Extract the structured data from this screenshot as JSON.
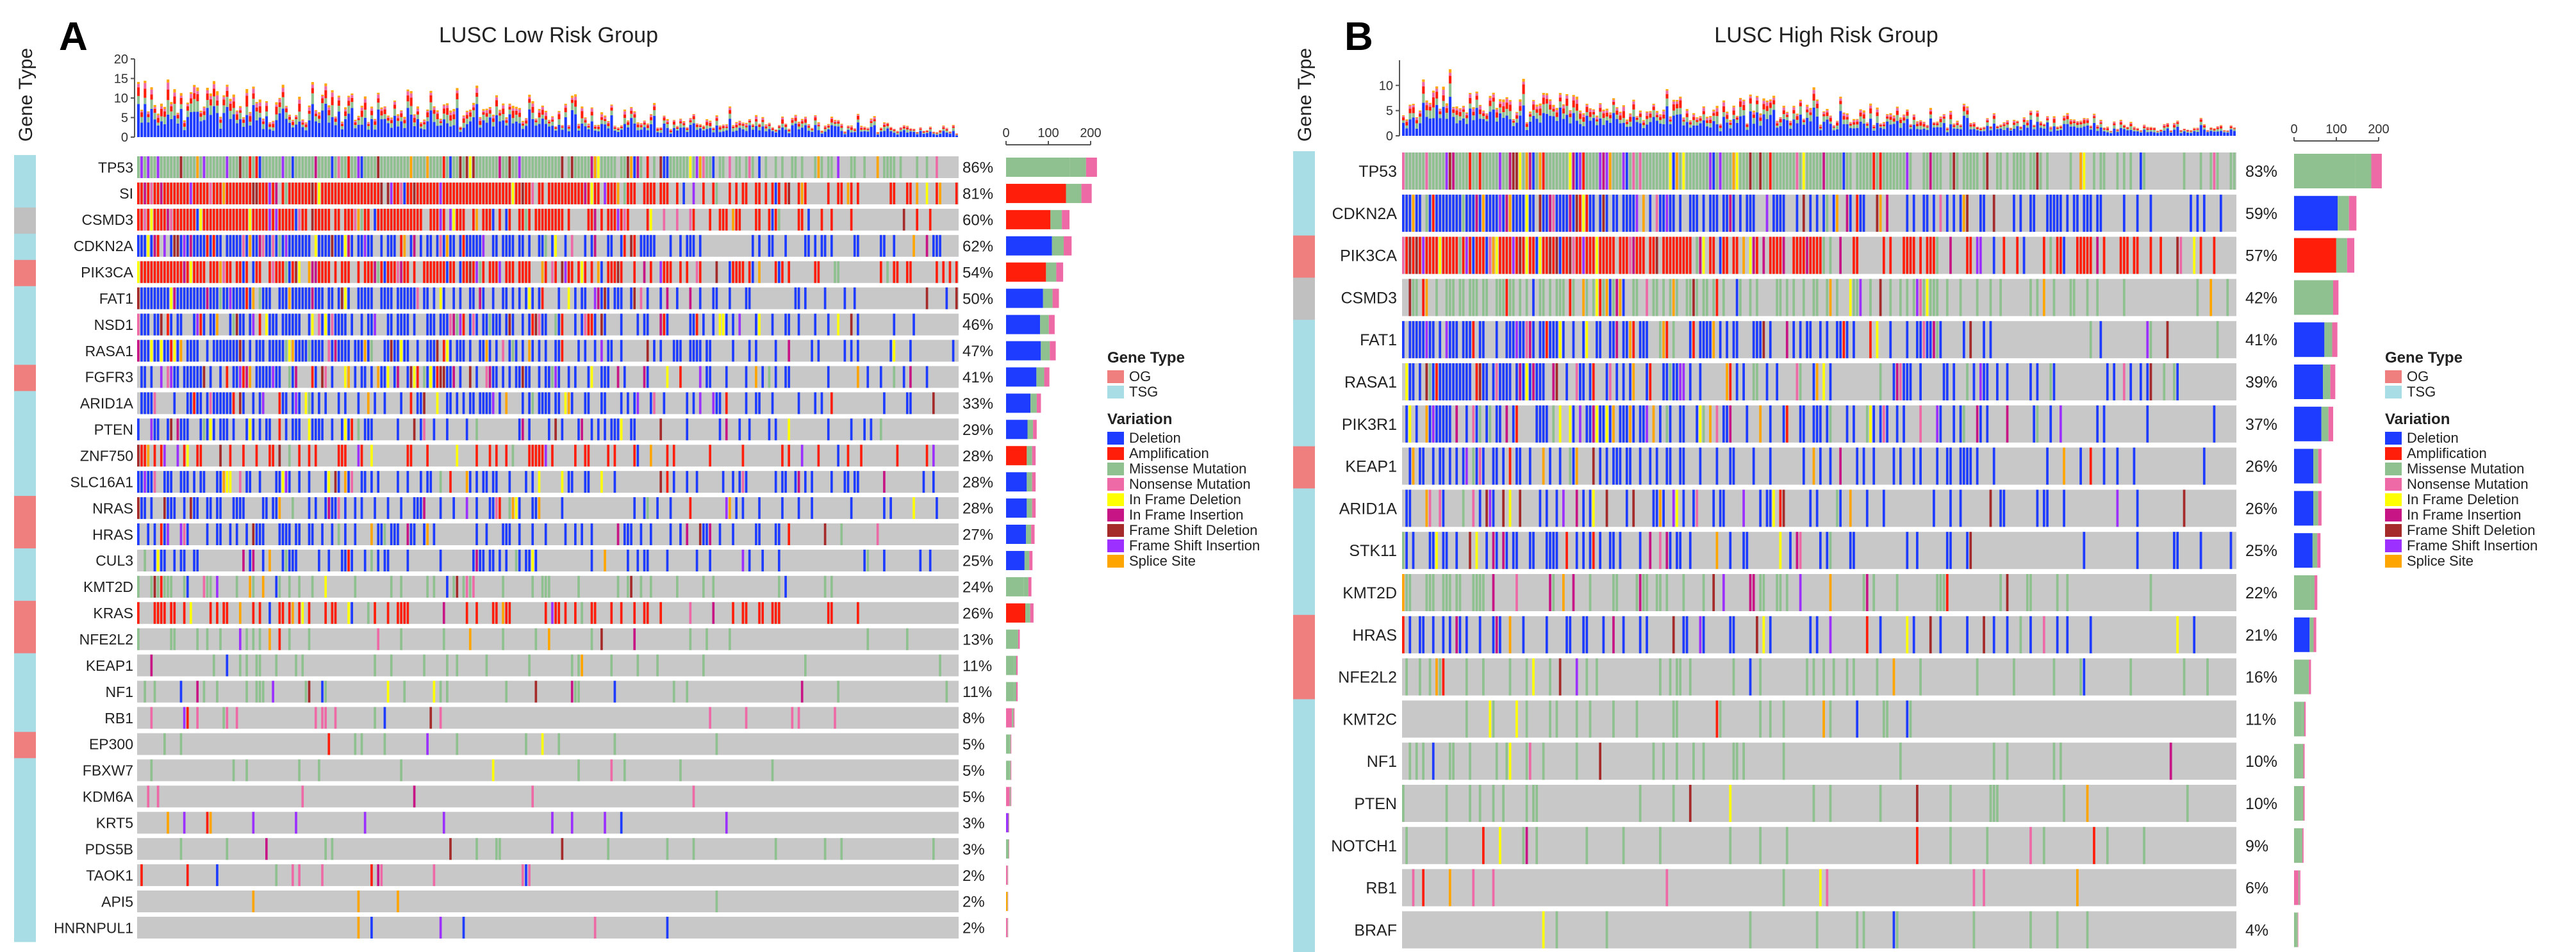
{
  "colors": {
    "OG": "#ef7f7f",
    "TSG": "#a9dde5",
    "Deletion": "#1e3cff",
    "Amplification": "#ff1e0a",
    "Missense Mutation": "#8fc08f",
    "Nonsense Mutation": "#ee6aa7",
    "In Frame Deletion": "#ffff00",
    "In Frame Insertion": "#c71585",
    "Frame Shift Deletion": "#a52a2a",
    "Frame Shift Insertion": "#9b30ff",
    "Splice Site": "#ffa500",
    "Other": "#c0c0c0",
    "background_track": "#c8c8c8"
  },
  "chart_data": [
    {
      "type": "oncoplot",
      "panel_label": "A",
      "title": "LUSC Low Risk Group",
      "gene_type_axis_label": "Gene Type",
      "top_bar": {
        "ylim": [
          0,
          20
        ],
        "ticks": [
          "0",
          "5",
          "10",
          "15",
          "20"
        ],
        "n_samples": 250
      },
      "side_bar": {
        "ticks": [
          "0",
          "100",
          "200"
        ]
      },
      "legend": {
        "gene_type_title": "Gene Type",
        "gene_types": [
          "OG",
          "TSG"
        ],
        "variation_title": "Variation",
        "variations": [
          "Deletion",
          "Amplification",
          "Missense Mutation",
          "Nonsense Mutation",
          "In Frame Deletion",
          "In Frame Insertion",
          "Frame Shift Deletion",
          "Frame Shift Insertion",
          "Splice Site"
        ]
      },
      "genes": [
        {
          "name": "TP53",
          "pct": "86%",
          "pct_value": 86,
          "type": "TSG",
          "dominant": "Missense Mutation"
        },
        {
          "name": "SI",
          "pct": "81%",
          "pct_value": 81,
          "type": "TSG",
          "dominant": "Amplification"
        },
        {
          "name": "CSMD3",
          "pct": "60%",
          "pct_value": 60,
          "type": "Other",
          "dominant": "Amplification"
        },
        {
          "name": "CDKN2A",
          "pct": "62%",
          "pct_value": 62,
          "type": "TSG",
          "dominant": "Deletion"
        },
        {
          "name": "PIK3CA",
          "pct": "54%",
          "pct_value": 54,
          "type": "OG",
          "dominant": "Amplification"
        },
        {
          "name": "FAT1",
          "pct": "50%",
          "pct_value": 50,
          "type": "TSG",
          "dominant": "Deletion"
        },
        {
          "name": "NSD1",
          "pct": "46%",
          "pct_value": 46,
          "type": "TSG",
          "dominant": "Deletion"
        },
        {
          "name": "RASA1",
          "pct": "47%",
          "pct_value": 47,
          "type": "TSG",
          "dominant": "Deletion"
        },
        {
          "name": "FGFR3",
          "pct": "41%",
          "pct_value": 41,
          "type": "OG",
          "dominant": "Deletion"
        },
        {
          "name": "ARID1A",
          "pct": "33%",
          "pct_value": 33,
          "type": "TSG",
          "dominant": "Deletion"
        },
        {
          "name": "PTEN",
          "pct": "29%",
          "pct_value": 29,
          "type": "TSG",
          "dominant": "Deletion"
        },
        {
          "name": "ZNF750",
          "pct": "28%",
          "pct_value": 28,
          "type": "TSG",
          "dominant": "Amplification"
        },
        {
          "name": "SLC16A1",
          "pct": "28%",
          "pct_value": 28,
          "type": "TSG",
          "dominant": "Deletion"
        },
        {
          "name": "NRAS",
          "pct": "28%",
          "pct_value": 28,
          "type": "OG",
          "dominant": "Deletion"
        },
        {
          "name": "HRAS",
          "pct": "27%",
          "pct_value": 27,
          "type": "OG",
          "dominant": "Deletion"
        },
        {
          "name": "CUL3",
          "pct": "25%",
          "pct_value": 25,
          "type": "TSG",
          "dominant": "Deletion"
        },
        {
          "name": "KMT2D",
          "pct": "24%",
          "pct_value": 24,
          "type": "TSG",
          "dominant": "Missense Mutation"
        },
        {
          "name": "KRAS",
          "pct": "26%",
          "pct_value": 26,
          "type": "OG",
          "dominant": "Amplification"
        },
        {
          "name": "NFE2L2",
          "pct": "13%",
          "pct_value": 13,
          "type": "OG",
          "dominant": "Missense Mutation"
        },
        {
          "name": "KEAP1",
          "pct": "11%",
          "pct_value": 11,
          "type": "TSG",
          "dominant": "Missense Mutation"
        },
        {
          "name": "NF1",
          "pct": "11%",
          "pct_value": 11,
          "type": "TSG",
          "dominant": "Missense Mutation"
        },
        {
          "name": "RB1",
          "pct": "8%",
          "pct_value": 8,
          "type": "TSG",
          "dominant": "Nonsense Mutation"
        },
        {
          "name": "EP300",
          "pct": "5%",
          "pct_value": 5,
          "type": "OG",
          "dominant": "Missense Mutation"
        },
        {
          "name": "FBXW7",
          "pct": "5%",
          "pct_value": 5,
          "type": "TSG",
          "dominant": "Missense Mutation"
        },
        {
          "name": "KDM6A",
          "pct": "5%",
          "pct_value": 5,
          "type": "TSG",
          "dominant": "Nonsense Mutation"
        },
        {
          "name": "KRT5",
          "pct": "3%",
          "pct_value": 3,
          "type": "TSG",
          "dominant": "Frame Shift Insertion"
        },
        {
          "name": "PDS5B",
          "pct": "3%",
          "pct_value": 3,
          "type": "TSG",
          "dominant": "Missense Mutation"
        },
        {
          "name": "TAOK1",
          "pct": "2%",
          "pct_value": 2,
          "type": "TSG",
          "dominant": "Nonsense Mutation"
        },
        {
          "name": "API5",
          "pct": "2%",
          "pct_value": 2,
          "type": "TSG",
          "dominant": "Splice Site"
        },
        {
          "name": "HNRNPUL1",
          "pct": "2%",
          "pct_value": 2,
          "type": "TSG",
          "dominant": "Nonsense Mutation"
        }
      ]
    },
    {
      "type": "oncoplot",
      "panel_label": "B",
      "title": "LUSC High Risk Group",
      "gene_type_axis_label": "Gene Type",
      "top_bar": {
        "ylim": [
          0,
          15
        ],
        "ticks": [
          "0",
          "5",
          "10"
        ],
        "n_samples": 250
      },
      "side_bar": {
        "ticks": [
          "0",
          "100",
          "200"
        ]
      },
      "legend": {
        "gene_type_title": "Gene Type",
        "gene_types": [
          "OG",
          "TSG"
        ],
        "variation_title": "Variation",
        "variations": [
          "Deletion",
          "Amplification",
          "Missense Mutation",
          "Nonsense Mutation",
          "In Frame Deletion",
          "In Frame Insertion",
          "Frame Shift Deletion",
          "Frame Shift Insertion",
          "Splice Site"
        ]
      },
      "genes": [
        {
          "name": "TP53",
          "pct": "83%",
          "pct_value": 83,
          "type": "TSG",
          "dominant": "Missense Mutation"
        },
        {
          "name": "CDKN2A",
          "pct": "59%",
          "pct_value": 59,
          "type": "TSG",
          "dominant": "Deletion"
        },
        {
          "name": "PIK3CA",
          "pct": "57%",
          "pct_value": 57,
          "type": "OG",
          "dominant": "Amplification"
        },
        {
          "name": "CSMD3",
          "pct": "42%",
          "pct_value": 42,
          "type": "Other",
          "dominant": "Missense Mutation"
        },
        {
          "name": "FAT1",
          "pct": "41%",
          "pct_value": 41,
          "type": "TSG",
          "dominant": "Deletion"
        },
        {
          "name": "RASA1",
          "pct": "39%",
          "pct_value": 39,
          "type": "TSG",
          "dominant": "Deletion"
        },
        {
          "name": "PIK3R1",
          "pct": "37%",
          "pct_value": 37,
          "type": "TSG",
          "dominant": "Deletion"
        },
        {
          "name": "KEAP1",
          "pct": "26%",
          "pct_value": 26,
          "type": "OG",
          "dominant": "Deletion"
        },
        {
          "name": "ARID1A",
          "pct": "26%",
          "pct_value": 26,
          "type": "TSG",
          "dominant": "Deletion"
        },
        {
          "name": "STK11",
          "pct": "25%",
          "pct_value": 25,
          "type": "TSG",
          "dominant": "Deletion"
        },
        {
          "name": "KMT2D",
          "pct": "22%",
          "pct_value": 22,
          "type": "TSG",
          "dominant": "Missense Mutation"
        },
        {
          "name": "HRAS",
          "pct": "21%",
          "pct_value": 21,
          "type": "OG",
          "dominant": "Deletion"
        },
        {
          "name": "NFE2L2",
          "pct": "16%",
          "pct_value": 16,
          "type": "OG",
          "dominant": "Missense Mutation"
        },
        {
          "name": "KMT2C",
          "pct": "11%",
          "pct_value": 11,
          "type": "TSG",
          "dominant": "Missense Mutation"
        },
        {
          "name": "NF1",
          "pct": "10%",
          "pct_value": 10,
          "type": "TSG",
          "dominant": "Missense Mutation"
        },
        {
          "name": "PTEN",
          "pct": "10%",
          "pct_value": 10,
          "type": "TSG",
          "dominant": "Missense Mutation"
        },
        {
          "name": "NOTCH1",
          "pct": "9%",
          "pct_value": 9,
          "type": "TSG",
          "dominant": "Missense Mutation"
        },
        {
          "name": "RB1",
          "pct": "6%",
          "pct_value": 6,
          "type": "TSG",
          "dominant": "Nonsense Mutation"
        },
        {
          "name": "BRAF",
          "pct": "4%",
          "pct_value": 4,
          "type": "TSG",
          "dominant": "Missense Mutation"
        }
      ]
    }
  ]
}
